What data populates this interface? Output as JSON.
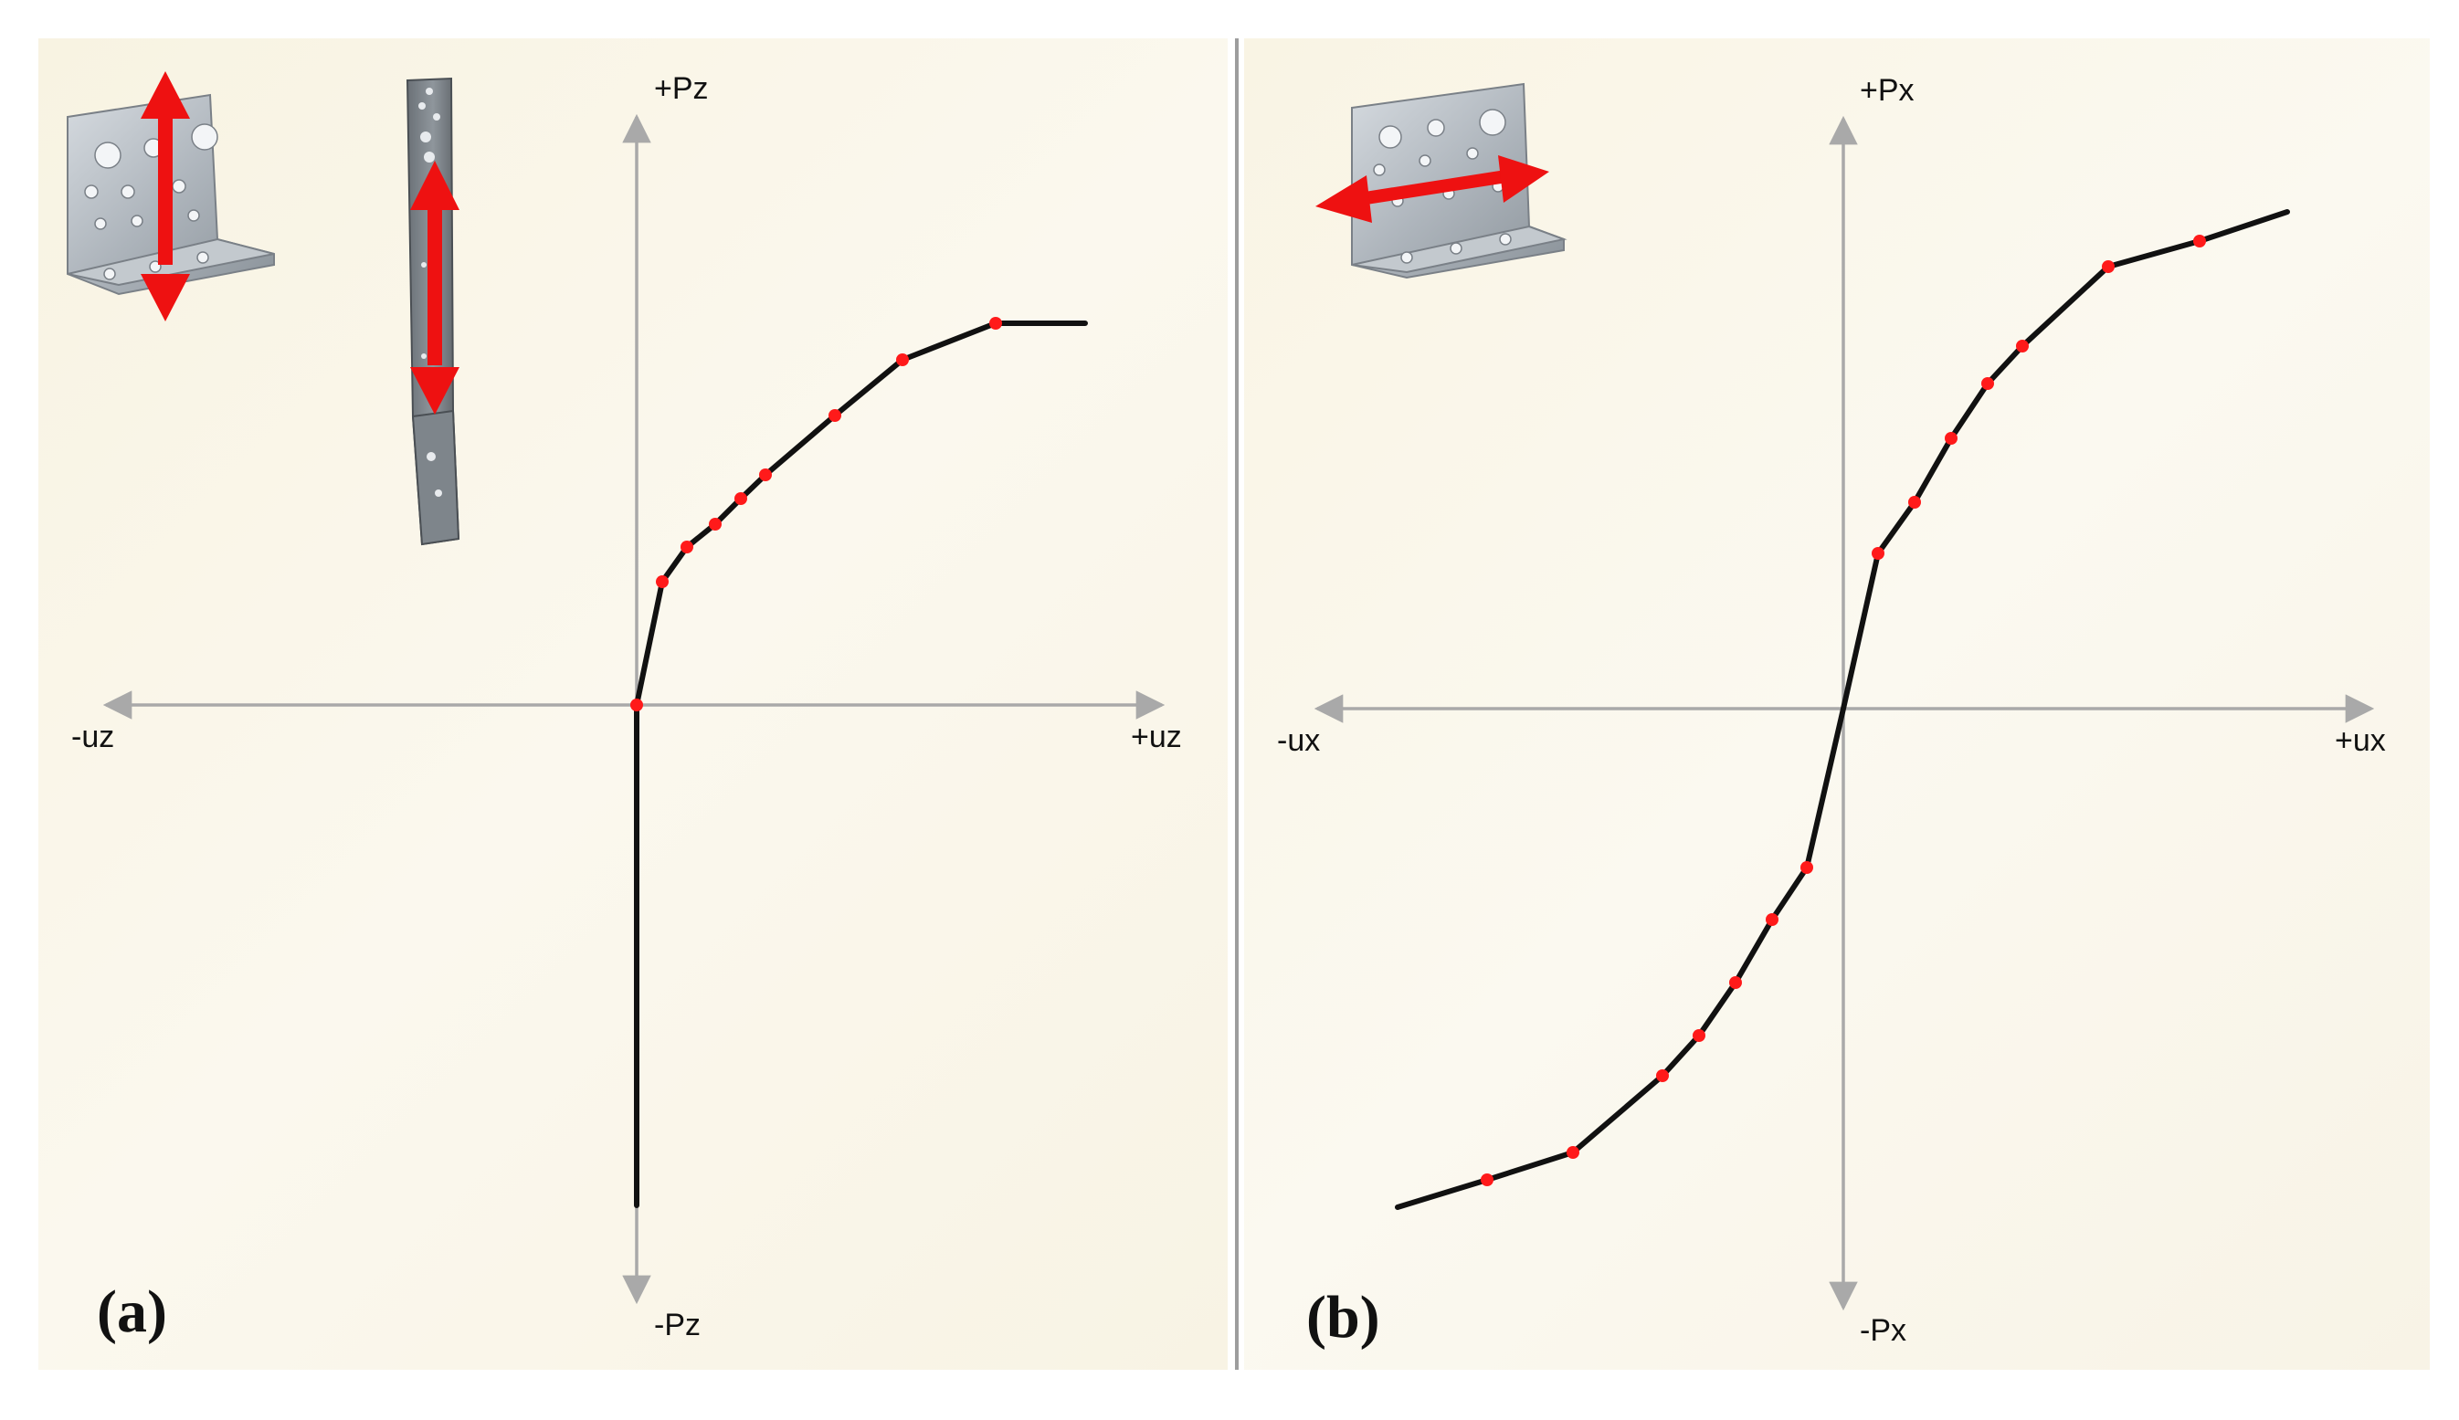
{
  "panels": [
    {
      "id": "a",
      "label": "(a)",
      "axes": {
        "pos_y": "+Pz",
        "neg_y": "-Pz",
        "pos_x": "+uz",
        "neg_x": "-uz"
      },
      "colors": {
        "curve": "#111111",
        "marker": "#ff1a1a",
        "axis": "#a9a9a9",
        "arrow": "#ee1111"
      },
      "icons": [
        "angle-bracket-icon",
        "hold-down-strap-icon"
      ]
    },
    {
      "id": "b",
      "label": "(b)",
      "axes": {
        "pos_y": "+Px",
        "neg_y": "-Px",
        "pos_x": "+ux",
        "neg_x": "-ux"
      },
      "colors": {
        "curve": "#111111",
        "marker": "#ff1a1a",
        "axis": "#a9a9a9",
        "arrow": "#ee1111"
      },
      "icons": [
        "angle-bracket-icon"
      ]
    }
  ]
}
